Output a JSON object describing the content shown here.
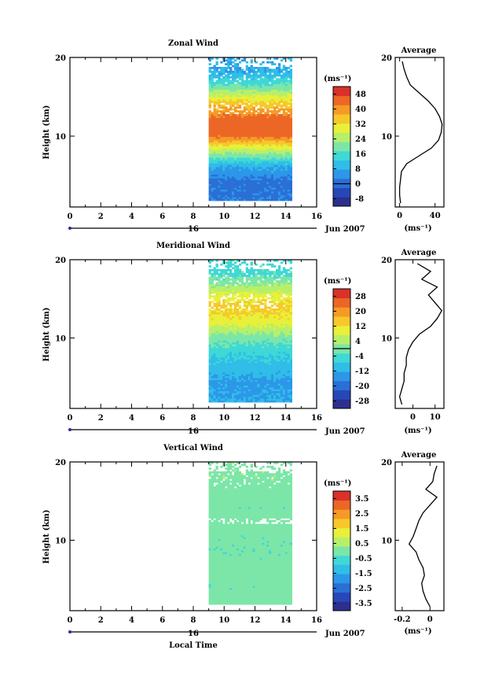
{
  "panels": [
    {
      "key": "zonal",
      "title": "Zonal Wind",
      "ylabel": "Height (km)",
      "cb_title": "(ms⁻¹)",
      "date_label": "Jun 2007",
      "day_label": "16",
      "avg_title": "Average",
      "avg_xlabel": "(ms⁻¹)",
      "cb_labels": [
        "48",
        "40",
        "32",
        "24",
        "16",
        "8",
        "0",
        "-8"
      ]
    },
    {
      "key": "meridional",
      "title": "Meridional Wind",
      "ylabel": "Height (km)",
      "cb_title": "(ms⁻¹)",
      "date_label": "Jun 2007",
      "day_label": "16",
      "avg_title": "Average",
      "avg_xlabel": "(ms⁻¹)",
      "cb_labels": [
        "28",
        "20",
        "12",
        "4",
        "-4",
        "-12",
        "-20",
        "-28"
      ]
    },
    {
      "key": "vertical",
      "title": "Vertical Wind",
      "ylabel": "Height (km)",
      "cb_title": "(ms⁻¹)",
      "date_label": "Jun 2007",
      "day_label": "16",
      "avg_title": "Average",
      "avg_xlabel": "(ms⁻¹)",
      "cb_labels": [
        "3.5",
        "2.5",
        "1.5",
        "0.5",
        "-0.5",
        "-1.5",
        "-2.5",
        "-3.5"
      ]
    }
  ],
  "xlabel_bottom": "Local Time",
  "colormap": [
    "#2b2f8e",
    "#2747b8",
    "#2a6fd6",
    "#2c97e8",
    "#30bde8",
    "#3fd8d6",
    "#7ce6a8",
    "#b8ef6a",
    "#e8f03a",
    "#f6c82a",
    "#f59a26",
    "#ec6726",
    "#d9322a"
  ],
  "chart_data": [
    {
      "type": "heatmap",
      "title": "Zonal Wind",
      "ylabel": "Height (km)",
      "x_ticks": [
        0,
        2,
        4,
        6,
        8,
        10,
        12,
        14,
        16
      ],
      "y_ticks": [
        10,
        20
      ],
      "xlim": [
        0,
        16
      ],
      "ylim": [
        1,
        20
      ],
      "data_time_range": [
        9,
        14.4
      ],
      "colorbar_ticks": [
        48,
        40,
        32,
        24,
        16,
        8,
        0,
        -8
      ],
      "colorbar_range": [
        -12,
        52
      ],
      "value_profile": {
        "heights": [
          2,
          4,
          6,
          8,
          10,
          12,
          14,
          16,
          18
        ],
        "values": [
          2,
          1,
          8,
          25,
          44,
          45,
          35,
          20,
          8
        ]
      },
      "average": {
        "title": "Average",
        "xlabel": "(ms⁻¹)",
        "x_ticks": [
          0,
          40
        ],
        "xlim": [
          -5,
          50
        ],
        "height": [
          1.5,
          2.5,
          3.5,
          4.5,
          5.5,
          6.5,
          7.5,
          8.5,
          9.5,
          10.5,
          11.5,
          12.5,
          13.5,
          14.5,
          15.5,
          16.5,
          17.5,
          18.5,
          19.5
        ],
        "value": [
          1,
          0,
          0,
          1,
          2,
          8,
          22,
          36,
          44,
          47,
          48,
          45,
          40,
          32,
          22,
          12,
          8,
          5,
          3
        ]
      }
    },
    {
      "type": "heatmap",
      "title": "Meridional Wind",
      "ylabel": "Height (km)",
      "x_ticks": [
        0,
        2,
        4,
        6,
        8,
        10,
        12,
        14,
        16
      ],
      "y_ticks": [
        10,
        20
      ],
      "xlim": [
        0,
        16
      ],
      "ylim": [
        1,
        20
      ],
      "data_time_range": [
        9,
        14.4
      ],
      "colorbar_ticks": [
        28,
        20,
        12,
        4,
        -4,
        -12,
        -20,
        -28
      ],
      "colorbar_range": [
        -32,
        32
      ],
      "value_profile": {
        "heights": [
          2,
          4,
          6,
          8,
          10,
          12,
          14,
          16,
          18
        ],
        "values": [
          -12,
          -14,
          -10,
          -6,
          0,
          10,
          14,
          6,
          -4
        ]
      },
      "average": {
        "title": "Average",
        "xlabel": "(ms⁻¹)",
        "x_ticks": [
          0,
          10
        ],
        "xlim": [
          -8,
          14
        ],
        "height": [
          1.5,
          2.5,
          3.5,
          4.5,
          5.5,
          6.5,
          7.5,
          8.5,
          9.5,
          10.5,
          11.5,
          12.5,
          13.5,
          14.5,
          15.5,
          16.5,
          17.5,
          18.5,
          19.5
        ],
        "value": [
          -5,
          -6,
          -5,
          -4,
          -4,
          -3,
          -3,
          -2,
          0,
          3,
          8,
          11,
          13,
          10,
          7,
          11,
          4,
          8,
          2
        ]
      }
    },
    {
      "type": "heatmap",
      "title": "Vertical Wind",
      "ylabel": "Height (km)",
      "xlabel": "Local Time",
      "x_ticks": [
        0,
        2,
        4,
        6,
        8,
        10,
        12,
        14,
        16
      ],
      "y_ticks": [
        10,
        20
      ],
      "xlim": [
        0,
        16
      ],
      "ylim": [
        1,
        20
      ],
      "data_time_range": [
        9,
        14.4
      ],
      "colorbar_ticks": [
        3.5,
        2.5,
        1.5,
        0.5,
        -0.5,
        -1.5,
        -2.5,
        -3.5
      ],
      "colorbar_range": [
        -4,
        4
      ],
      "value_profile": {
        "heights": [
          2,
          4,
          6,
          8,
          10,
          12,
          14,
          16,
          18
        ],
        "values": [
          0,
          -0.1,
          0,
          -0.1,
          -0.1,
          0,
          -0.1,
          0,
          0.1
        ]
      },
      "average": {
        "title": "Average",
        "xlabel": "(ms⁻¹)",
        "x_ticks": [
          -0.2,
          0.0
        ],
        "xlim": [
          -0.25,
          0.1
        ],
        "height": [
          1.5,
          2.5,
          3.5,
          4.5,
          5.5,
          6.5,
          7.5,
          8.5,
          9.5,
          10.5,
          11.5,
          12.5,
          13.5,
          14.5,
          15.5,
          16.5,
          17.5,
          18.5,
          19.5
        ],
        "value": [
          0.0,
          -0.03,
          -0.05,
          -0.06,
          -0.04,
          -0.05,
          -0.08,
          -0.1,
          -0.15,
          -0.12,
          -0.1,
          -0.08,
          -0.05,
          0.0,
          0.05,
          -0.03,
          0.02,
          0.03,
          0.05
        ]
      }
    }
  ]
}
